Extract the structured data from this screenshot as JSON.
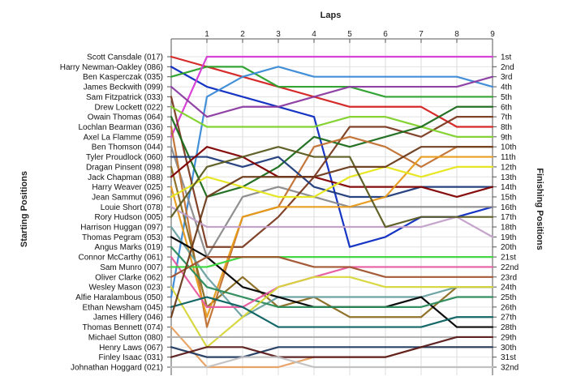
{
  "chart_data": {
    "type": "line",
    "title": "Laps",
    "ylabel_left": "Starting Positions",
    "ylabel_right": "Finishing Positions",
    "x": [
      0,
      1,
      2,
      3,
      4,
      5,
      6,
      7,
      8,
      9
    ],
    "x_tick_labels": [
      "1",
      "2",
      "3",
      "4",
      "5",
      "6",
      "7",
      "8",
      "9"
    ],
    "y_reversed": true,
    "ylim": [
      1,
      32
    ],
    "grid": true,
    "start_labels": [
      "Scott Cansdale (017)",
      "Harry Newman-Oakley (086)",
      "Ben Kasperczak (035)",
      "James Beckwith (099)",
      "Sam Fitzpatrick (033)",
      "Drew Lockett (022)",
      "Owain Thomas (064)",
      "Lochlan Bearman (036)",
      "Axel La Flamme (059)",
      "Ben Thomson (044)",
      "Tyler Proudlock (060)",
      "Dragan Pinsent (098)",
      "Jack Chapman (088)",
      "Harry Weaver (025)",
      "Jean Sammut (096)",
      "Louie Short (078)",
      "Rory Hudson (005)",
      "Harrison Huggan (097)",
      "Thomas Pegram (053)",
      "Angus Marks (019)",
      "Connor McCarthy (061)",
      "Sam Munro (007)",
      "Oliver Clarke (062)",
      "Wesley Mason (023)",
      "Alfie Haralambous (050)",
      "Ethan Newsham (045)",
      "James Hillery (046)",
      "Thomas Bennett (074)",
      "Michael Sutton (080)",
      "Henry Laws (067)",
      "Finley Isaac (031)",
      "Johnathan Hoggard (021)"
    ],
    "finish_labels": [
      "1st",
      "2nd",
      "3rd",
      "4th",
      "5th",
      "6th",
      "7th",
      "8th",
      "9th",
      "10th",
      "11th",
      "12th",
      "13th",
      "14th",
      "15th",
      "16th",
      "17th",
      "18th",
      "19th",
      "20th",
      "21st",
      "22nd",
      "23rd",
      "24th",
      "25th",
      "26th",
      "27th",
      "28th",
      "29th",
      "30th",
      "31st",
      "32nd"
    ],
    "series": [
      {
        "color": "#d42020",
        "values": [
          1,
          2,
          3,
          4,
          5,
          6,
          6,
          6,
          8,
          8
        ]
      },
      {
        "color": "#0a2ac0",
        "values": [
          2,
          4,
          5,
          6,
          7,
          20,
          19,
          17,
          17,
          16
        ]
      },
      {
        "color": "#2aa02a",
        "values": [
          3,
          2,
          2,
          4,
          4,
          4,
          5,
          5,
          5,
          5
        ]
      },
      {
        "color": "#d63ad6",
        "values": [
          9,
          1,
          1,
          1,
          1,
          1,
          1,
          1,
          1,
          1
        ]
      },
      {
        "color": "#3a8ad6",
        "values": [
          25,
          5,
          3,
          2,
          3,
          3,
          3,
          3,
          3,
          4
        ]
      },
      {
        "color": "#8a8a8a",
        "values": [
          10,
          21,
          15,
          14,
          15,
          16,
          16,
          16,
          16,
          16
        ]
      },
      {
        "color": "#8a3aa0",
        "values": [
          4,
          7,
          6,
          6,
          5,
          4,
          4,
          4,
          4,
          3
        ]
      },
      {
        "color": "#7a3a20",
        "values": [
          5,
          20,
          20,
          17,
          13,
          8,
          8,
          9,
          7,
          7
        ]
      },
      {
        "color": "#7fd12a",
        "values": [
          6,
          8,
          8,
          8,
          8,
          7,
          7,
          8,
          9,
          9
        ]
      },
      {
        "color": "#1a6a1a",
        "values": [
          7,
          15,
          14,
          12,
          9,
          10,
          9,
          8,
          6,
          6
        ]
      },
      {
        "color": "#c07030",
        "values": [
          8,
          28,
          17,
          16,
          10,
          9,
          10,
          12,
          10,
          10
        ]
      },
      {
        "color": "#1e3a7a",
        "values": [
          11,
          11,
          12,
          11,
          14,
          15,
          15,
          14,
          14,
          14
        ]
      },
      {
        "color": "#8a6a20",
        "values": [
          12,
          26,
          23,
          26,
          25,
          27,
          27,
          27,
          24,
          24
        ]
      },
      {
        "color": "#800000",
        "values": [
          13,
          10,
          11,
          13,
          13,
          14,
          14,
          14,
          15,
          14
        ]
      },
      {
        "color": "#e69a1a",
        "values": [
          14,
          27,
          17,
          16,
          16,
          16,
          15,
          11,
          11,
          11
        ]
      },
      {
        "color": "#e6e61a",
        "values": [
          15,
          13,
          14,
          15,
          15,
          13,
          12,
          13,
          12,
          12
        ]
      },
      {
        "color": "#c2a0c8",
        "values": [
          16,
          18,
          18,
          18,
          18,
          18,
          18,
          18,
          17,
          19
        ]
      },
      {
        "color": "#5a5a20",
        "values": [
          17,
          12,
          11,
          10,
          11,
          11,
          18,
          17,
          17,
          17
        ]
      },
      {
        "color": "#6aa0a0",
        "values": [
          18,
          23,
          27,
          25,
          25,
          25,
          25,
          25,
          24,
          24
        ]
      },
      {
        "color": "#000000",
        "values": [
          19,
          21,
          24,
          25,
          26,
          26,
          26,
          25,
          28,
          28
        ]
      },
      {
        "color": "#2a8a5a",
        "values": [
          20,
          24,
          25,
          26,
          26,
          26,
          26,
          26,
          25,
          25
        ]
      },
      {
        "color": "#e65aa0",
        "values": [
          21,
          26,
          26,
          24,
          23,
          22,
          22,
          22,
          22,
          22
        ]
      },
      {
        "color": "#3ad63a",
        "values": [
          22,
          22,
          21,
          21,
          21,
          21,
          21,
          21,
          21,
          21
        ]
      },
      {
        "color": "#a0522d",
        "values": [
          23,
          21,
          21,
          21,
          22,
          22,
          23,
          23,
          23,
          23
        ]
      },
      {
        "color": "#d6d63a",
        "values": [
          24,
          30,
          27,
          24,
          23,
          23,
          24,
          24,
          24,
          24
        ]
      },
      {
        "color": "#0a6060",
        "values": [
          26,
          25,
          26,
          28,
          28,
          28,
          28,
          28,
          27,
          27
        ]
      },
      {
        "color": "#6a3a1a",
        "values": [
          27,
          15,
          13,
          13,
          13,
          12,
          12,
          10,
          10,
          10
        ]
      },
      {
        "color": "#e6a060",
        "values": [
          28,
          32,
          32,
          32,
          31,
          31,
          31,
          30,
          30,
          30
        ]
      },
      {
        "color": "#b0b0b0",
        "values": [
          29,
          29,
          29,
          29,
          29,
          29,
          29,
          29,
          29,
          29
        ]
      },
      {
        "color": "#203a60",
        "values": [
          30,
          31,
          31,
          30,
          30,
          30,
          30,
          30,
          30,
          30
        ]
      },
      {
        "color": "#5a1a1a",
        "values": [
          31,
          30,
          30,
          31,
          31,
          31,
          31,
          30,
          29,
          29
        ]
      },
      {
        "color": "#c0c0c0",
        "values": [
          32,
          32,
          31,
          31,
          32,
          32,
          32,
          32,
          32,
          32
        ]
      }
    ]
  }
}
